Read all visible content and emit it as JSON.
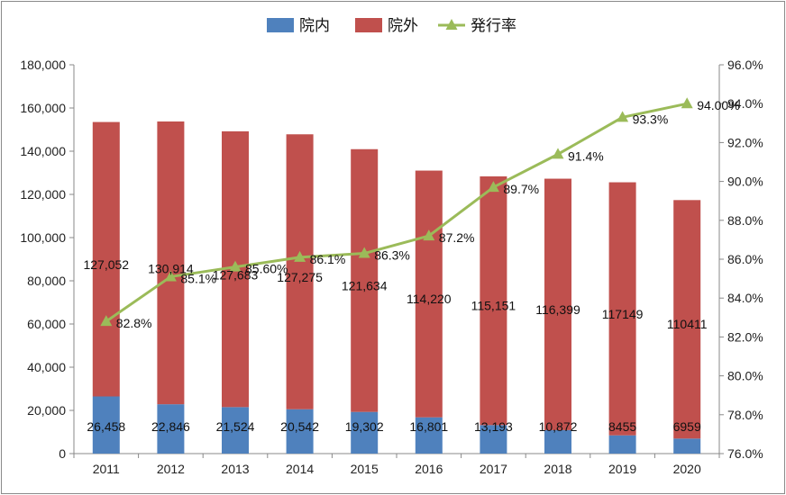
{
  "chart_data": {
    "type": "bar",
    "stacked": true,
    "categories": [
      "2011",
      "2012",
      "2013",
      "2014",
      "2015",
      "2016",
      "2017",
      "2018",
      "2019",
      "2020"
    ],
    "series": [
      {
        "name": "院内",
        "type": "bar",
        "color": "#4f81bd",
        "axis": "left",
        "values": [
          26458,
          22846,
          21524,
          20542,
          19302,
          16801,
          13193,
          10872,
          8455,
          6959
        ],
        "labels": [
          "26,458",
          "22,846",
          "21,524",
          "20,542",
          "19,302",
          "16,801",
          "13,193",
          "10,872",
          "8455",
          "6959"
        ]
      },
      {
        "name": "院外",
        "type": "bar",
        "color": "#c0504d",
        "axis": "left",
        "values": [
          127052,
          130914,
          127683,
          127275,
          121634,
          114220,
          115151,
          116399,
          117149,
          110411
        ],
        "labels": [
          "127,052",
          "130,914",
          "127,683",
          "127,275",
          "121,634",
          "114,220",
          "115,151",
          "116,399",
          "117149",
          "110411"
        ]
      },
      {
        "name": "発行率",
        "type": "line",
        "color": "#9bbb59",
        "axis": "right",
        "values": [
          82.8,
          85.1,
          85.6,
          86.1,
          86.3,
          87.2,
          89.7,
          91.4,
          93.3,
          94.0
        ],
        "labels": [
          "82.8%",
          "85.1%",
          "85.60%",
          "86.1%",
          "86.3%",
          "87.2%",
          "89.7%",
          "91.4%",
          "93.3%",
          "94.00%"
        ]
      }
    ],
    "ylim": [
      0,
      180000
    ],
    "y_ticks": [
      "0",
      "20,000",
      "40,000",
      "60,000",
      "80,000",
      "100,000",
      "120,000",
      "140,000",
      "160,000",
      "180,000"
    ],
    "y2lim": [
      76.0,
      96.0
    ],
    "y2_ticks": [
      "76.0%",
      "78.0%",
      "80.0%",
      "82.0%",
      "84.0%",
      "86.0%",
      "88.0%",
      "90.0%",
      "92.0%",
      "94.0%",
      "96.0%"
    ],
    "legend": "top",
    "grid": false
  }
}
